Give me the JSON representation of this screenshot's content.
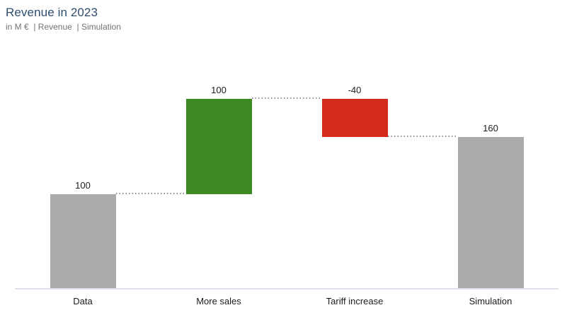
{
  "header": {
    "title": "Revenue in 2023",
    "subtitle": "in M €  | Revenue  | Simulation"
  },
  "chart_data": {
    "type": "bar",
    "subtype": "waterfall",
    "title": "Revenue in 2023",
    "subtitle": "in M €  | Revenue  | Simulation",
    "unit": "M €",
    "categories": [
      "Data",
      "More sales",
      "Tariff increase",
      "Simulation"
    ],
    "bars": [
      {
        "label": "Data",
        "value": 100,
        "start": 0,
        "end": 100,
        "role": "total",
        "value_label": "100"
      },
      {
        "label": "More sales",
        "value": 100,
        "start": 100,
        "end": 200,
        "role": "increase",
        "value_label": "100"
      },
      {
        "label": "Tariff increase",
        "value": -40,
        "start": 200,
        "end": 160,
        "role": "decrease",
        "value_label": "-40"
      },
      {
        "label": "Simulation",
        "value": 160,
        "start": 0,
        "end": 160,
        "role": "total",
        "value_label": "160"
      }
    ],
    "connectors": [
      {
        "from": 0,
        "to": 1,
        "level": 100
      },
      {
        "from": 1,
        "to": 2,
        "level": 200
      },
      {
        "from": 2,
        "to": 3,
        "level": 160
      }
    ],
    "colors": {
      "total": "#ababab",
      "increase": "#3e8a22",
      "decrease": "#d52b1e",
      "axis": "#dce1ea",
      "connector": "#8f8f8f",
      "title": "#2e4d6e",
      "subtitle": "#737373",
      "label": "#1c1c1c"
    },
    "ylim": [
      0,
      200
    ],
    "grid": false,
    "legend": false,
    "y_axis_visible": false,
    "x_axis_visible": true
  }
}
